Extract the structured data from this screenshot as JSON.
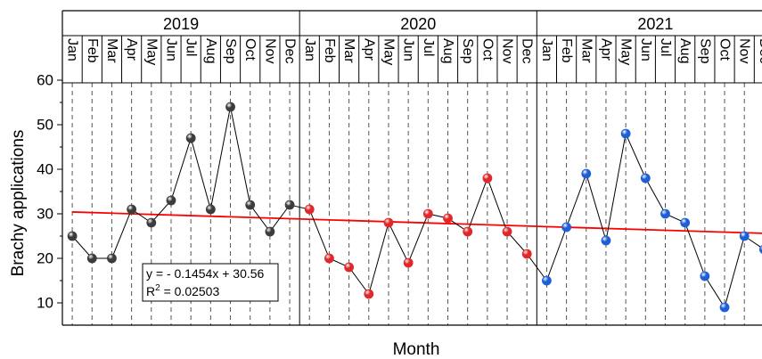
{
  "chart_data": {
    "type": "scatter",
    "xlabel": "Month",
    "ylabel": "Brachy applications",
    "ylim": [
      5,
      60
    ],
    "yticks": [
      10,
      20,
      30,
      40,
      50,
      60
    ],
    "years": [
      "2019",
      "2020",
      "2021"
    ],
    "months": [
      "Jan",
      "Feb",
      "Mar",
      "Apr",
      "May",
      "Jun",
      "Jul",
      "Aug",
      "Sep",
      "Oct",
      "Nov",
      "Dec"
    ],
    "grid": "vertical dashed",
    "series": [
      {
        "year": "2019",
        "color": "#3c3c3c",
        "values": [
          25,
          20,
          20,
          31,
          28,
          33,
          47,
          31,
          54,
          32,
          26,
          32
        ]
      },
      {
        "year": "2020",
        "color": "#e0282a",
        "values": [
          31,
          20,
          18,
          12,
          28,
          19,
          30,
          29,
          26,
          38,
          26,
          21
        ]
      },
      {
        "year": "2021",
        "color": "#1f5fd6",
        "values": [
          15,
          27,
          39,
          24,
          48,
          38,
          30,
          28,
          16,
          9,
          25,
          22
        ]
      }
    ],
    "trendline": {
      "slope": -0.1454,
      "intercept": 30.56,
      "color": "#ff0000",
      "equation": "y = - 0.1454x + 30.56",
      "r2_prefix": "R",
      "r2_sup": "2",
      "r2_value": " = 0.02503"
    }
  }
}
